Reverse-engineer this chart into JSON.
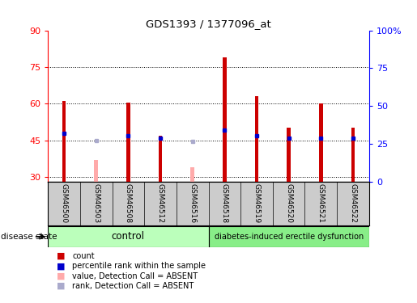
{
  "title": "GDS1393 / 1377096_at",
  "samples": [
    "GSM46500",
    "GSM46503",
    "GSM46508",
    "GSM46512",
    "GSM46516",
    "GSM46518",
    "GSM46519",
    "GSM46520",
    "GSM46521",
    "GSM46522"
  ],
  "count_values": [
    61,
    null,
    60.5,
    47,
    null,
    79,
    63,
    50,
    60,
    50
  ],
  "count_absent_values": [
    null,
    37,
    null,
    null,
    34,
    null,
    null,
    null,
    null,
    null
  ],
  "rank_values": [
    48,
    null,
    47,
    46,
    null,
    49,
    47,
    46,
    46,
    46
  ],
  "rank_absent_values": [
    null,
    45,
    null,
    null,
    44.5,
    null,
    null,
    null,
    null,
    null
  ],
  "ylim_left": [
    28,
    90
  ],
  "ylim_right": [
    0,
    100
  ],
  "yticks_left": [
    30,
    45,
    60,
    75,
    90
  ],
  "yticks_right": [
    0,
    25,
    50,
    75,
    100
  ],
  "ytick_labels_right": [
    "0",
    "25",
    "50",
    "75",
    "100%"
  ],
  "control_count": 5,
  "disease_count": 5,
  "control_label": "control",
  "disease_label": "diabetes-induced erectile dysfunction",
  "disease_state_label": "disease state",
  "bar_color": "#cc0000",
  "bar_absent_color": "#ffaaaa",
  "rank_color": "#0000cc",
  "rank_absent_color": "#aaaacc",
  "control_bg": "#bbffbb",
  "disease_bg": "#88ee88",
  "label_area_bg": "#cccccc",
  "bar_width": 0.12
}
